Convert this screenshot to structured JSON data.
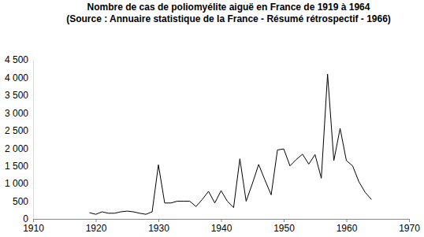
{
  "chart_data": {
    "type": "line",
    "title": "Nombre de cas de poliomyélite aiguë en France de 1919 à 1964",
    "subtitle": "(Source : Annuaire statistique de la France - Résumé rétrospectif - 1966)",
    "x": [
      1919,
      1920,
      1921,
      1922,
      1923,
      1924,
      1925,
      1926,
      1927,
      1928,
      1929,
      1930,
      1931,
      1932,
      1933,
      1934,
      1935,
      1936,
      1937,
      1938,
      1939,
      1940,
      1941,
      1942,
      1943,
      1944,
      1945,
      1946,
      1947,
      1948,
      1949,
      1950,
      1951,
      1952,
      1953,
      1954,
      1955,
      1956,
      1957,
      1958,
      1959,
      1960,
      1961,
      1962,
      1963,
      1964
    ],
    "values": [
      175,
      130,
      200,
      160,
      160,
      200,
      220,
      200,
      160,
      130,
      200,
      1530,
      450,
      450,
      500,
      500,
      500,
      350,
      550,
      780,
      450,
      800,
      500,
      320,
      1700,
      500,
      1000,
      1540,
      1100,
      680,
      1950,
      1980,
      1500,
      1680,
      1830,
      1550,
      1820,
      1150,
      4100,
      1650,
      2560,
      1650,
      1500,
      1050,
      750,
      550
    ],
    "color": "#000000",
    "xlim": [
      1910,
      1970
    ],
    "xticks": [
      1910,
      1920,
      1930,
      1940,
      1950,
      1960,
      1970
    ],
    "ylim": [
      0,
      4500
    ],
    "yticks": [
      0,
      500,
      {
        "value": 1000,
        "label": "1 000"
      },
      {
        "value": 1500,
        "label": "1 500"
      },
      {
        "value": 2000,
        "label": "2 000"
      },
      {
        "value": 2500,
        "label": "2 500"
      },
      {
        "value": 3000,
        "label": "3 000"
      },
      {
        "value": 3500,
        "label": "3 500"
      },
      {
        "value": 4000,
        "label": "4 000"
      },
      {
        "value": 4500,
        "label": "4 500"
      }
    ],
    "grid": false
  }
}
